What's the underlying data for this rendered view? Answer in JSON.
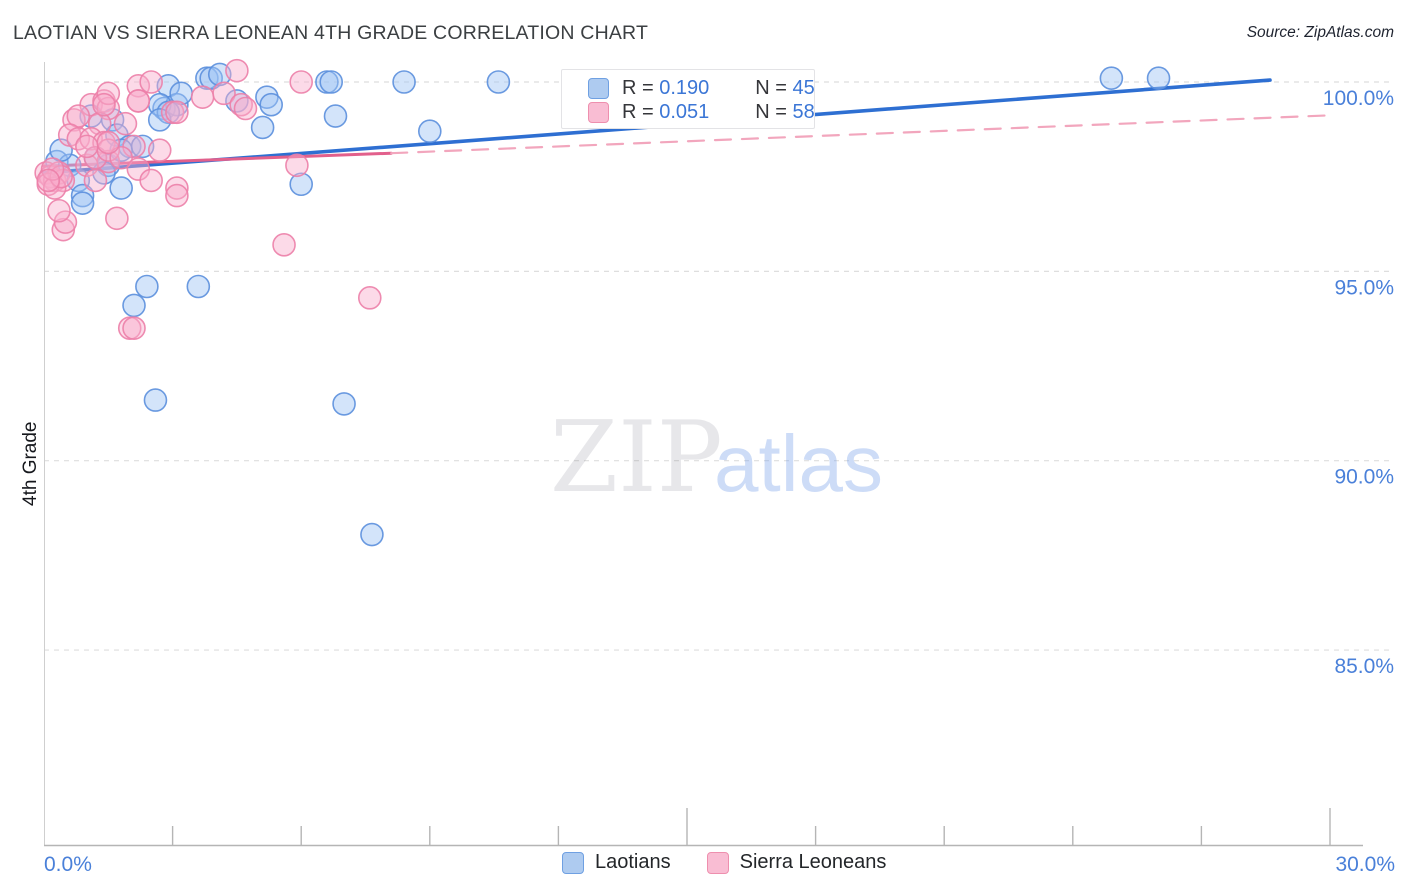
{
  "header": {
    "title": "LAOTIAN VS SIERRA LEONEAN 4TH GRADE CORRELATION CHART",
    "source": "Source: ZipAtlas.com"
  },
  "watermark": {
    "zip": "ZIP",
    "atlas": "atlas"
  },
  "legend": {
    "rows": [
      {
        "series": "Laotians",
        "r_label": "R = ",
        "r_value": "0.190",
        "n_label": "N = ",
        "n_value": "45"
      },
      {
        "series": "Sierra Leoneans",
        "r_label": "R = ",
        "r_value": "0.051",
        "n_label": "N = ",
        "n_value": "58"
      }
    ]
  },
  "bottom_legend": {
    "items": [
      {
        "label": "Laotians"
      },
      {
        "label": "Sierra Leoneans"
      }
    ]
  },
  "chart_data": {
    "type": "scatter",
    "title": "LAOTIAN VS SIERRA LEONEAN 4TH GRADE CORRELATION CHART",
    "xlabel": "",
    "ylabel": "4th Grade",
    "xlim": [
      0,
      30
    ],
    "ylim": [
      85,
      100.5
    ],
    "grid": "horizontal-dashed",
    "legend_position": "top-center and bottom-center",
    "x_axis": {
      "tick_labels": [
        {
          "value": 0,
          "text": "0.0%"
        },
        {
          "value": 30,
          "text": "30.0%"
        }
      ],
      "minor_tick_values": [
        3,
        6,
        9,
        12,
        18,
        21,
        24,
        27
      ],
      "major_tick_values": [
        15,
        30
      ]
    },
    "y_axis": {
      "gridline_values": [
        100,
        95,
        90,
        85
      ],
      "tick_labels": [
        "100.0%",
        "95.0%",
        "90.0%",
        "85.0%"
      ]
    },
    "series": [
      {
        "name": "Laotians",
        "R": 0.19,
        "N": 45,
        "fill_color": "#9ec4f3",
        "stroke_color": "#5b8fdd",
        "points": [
          [
            2.9,
            99.9
          ],
          [
            2.8,
            99.3
          ],
          [
            3.1,
            99.4
          ],
          [
            1.1,
            99.1
          ],
          [
            1.6,
            99.0
          ],
          [
            1.7,
            98.6
          ],
          [
            2.0,
            98.3
          ],
          [
            0.3,
            97.9
          ],
          [
            0.6,
            97.8
          ],
          [
            0.8,
            97.4
          ],
          [
            0.9,
            97.0
          ],
          [
            0.9,
            96.8
          ],
          [
            1.5,
            97.8
          ],
          [
            1.8,
            97.2
          ],
          [
            1.8,
            98.2
          ],
          [
            2.3,
            98.3
          ],
          [
            3.8,
            100.1
          ],
          [
            3.9,
            100.1
          ],
          [
            4.1,
            100.2
          ],
          [
            3.2,
            99.7
          ],
          [
            2.7,
            99.4
          ],
          [
            2.9,
            99.2
          ],
          [
            5.2,
            99.6
          ],
          [
            5.3,
            99.4
          ],
          [
            5.1,
            98.8
          ],
          [
            6.6,
            100.0
          ],
          [
            6.7,
            100.0
          ],
          [
            6.8,
            99.1
          ],
          [
            6.0,
            97.3
          ],
          [
            8.4,
            100.0
          ],
          [
            10.6,
            100.0
          ],
          [
            9.0,
            98.7
          ],
          [
            2.4,
            94.6
          ],
          [
            3.6,
            94.6
          ],
          [
            2.1,
            94.1
          ],
          [
            2.6,
            91.6
          ],
          [
            7.0,
            91.5
          ],
          [
            7.65,
            88.05
          ],
          [
            24.9,
            100.1
          ],
          [
            26.0,
            100.1
          ],
          [
            0.4,
            98.2
          ],
          [
            1.2,
            98.0
          ],
          [
            1.4,
            97.6
          ],
          [
            2.7,
            99.0
          ],
          [
            4.5,
            99.5
          ]
        ]
      },
      {
        "name": "Sierra Leoneans",
        "R": 0.051,
        "N": 58,
        "fill_color": "#f8aecb",
        "stroke_color": "#ec7fa8",
        "points": [
          [
            2.2,
            99.9
          ],
          [
            2.5,
            100.0
          ],
          [
            1.1,
            99.4
          ],
          [
            1.4,
            99.5
          ],
          [
            1.5,
            99.3
          ],
          [
            2.2,
            99.5
          ],
          [
            0.7,
            99.0
          ],
          [
            0.8,
            99.1
          ],
          [
            1.3,
            98.9
          ],
          [
            1.9,
            98.9
          ],
          [
            0.6,
            98.6
          ],
          [
            0.8,
            98.5
          ],
          [
            1.1,
            98.5
          ],
          [
            1.4,
            98.4
          ],
          [
            2.1,
            98.3
          ],
          [
            3.0,
            99.2
          ],
          [
            1.5,
            99.7
          ],
          [
            1.4,
            99.4
          ],
          [
            2.2,
            99.5
          ],
          [
            3.7,
            99.6
          ],
          [
            3.1,
            99.2
          ],
          [
            4.2,
            99.7
          ],
          [
            4.5,
            100.3
          ],
          [
            6.0,
            100.0
          ],
          [
            5.9,
            97.8
          ],
          [
            4.6,
            99.4
          ],
          [
            4.7,
            99.3
          ],
          [
            0.05,
            97.6
          ],
          [
            0.15,
            97.5
          ],
          [
            0.25,
            97.4
          ],
          [
            0.35,
            97.6
          ],
          [
            0.45,
            97.4
          ],
          [
            0.1,
            97.3
          ],
          [
            0.25,
            97.2
          ],
          [
            0.4,
            97.5
          ],
          [
            0.2,
            97.7
          ],
          [
            0.1,
            97.4
          ],
          [
            1.0,
            97.8
          ],
          [
            1.2,
            97.4
          ],
          [
            1.5,
            97.9
          ],
          [
            1.7,
            96.4
          ],
          [
            0.45,
            96.1
          ],
          [
            0.5,
            96.3
          ],
          [
            0.35,
            96.6
          ],
          [
            3.1,
            97.2
          ],
          [
            3.1,
            97.0
          ],
          [
            5.6,
            95.7
          ],
          [
            7.6,
            94.3
          ],
          [
            2.0,
            93.5
          ],
          [
            2.1,
            93.5
          ],
          [
            1.2,
            98.0
          ],
          [
            1.5,
            98.2
          ],
          [
            1.8,
            98.0
          ],
          [
            2.2,
            97.7
          ],
          [
            2.5,
            97.4
          ],
          [
            2.7,
            98.2
          ],
          [
            1.0,
            98.3
          ],
          [
            1.5,
            98.4
          ]
        ]
      }
    ],
    "trendlines": [
      {
        "series": "Laotians",
        "style": "solid",
        "color": "#2e6fd2",
        "width": 3.6,
        "x1": 0,
        "y1": 97.6,
        "x2": 28.6,
        "y2": 100.05
      },
      {
        "series": "Sierra Leoneans",
        "style": "solid",
        "color": "#e2608c",
        "width": 3,
        "x1": 0,
        "y1": 97.78,
        "x2": 8.1,
        "y2": 98.12
      },
      {
        "series": "Sierra Leoneans",
        "style": "dashed",
        "color": "#f2a6bd",
        "width": 2.2,
        "x1": 8.1,
        "y1": 98.12,
        "x2": 30,
        "y2": 99.12
      }
    ]
  }
}
